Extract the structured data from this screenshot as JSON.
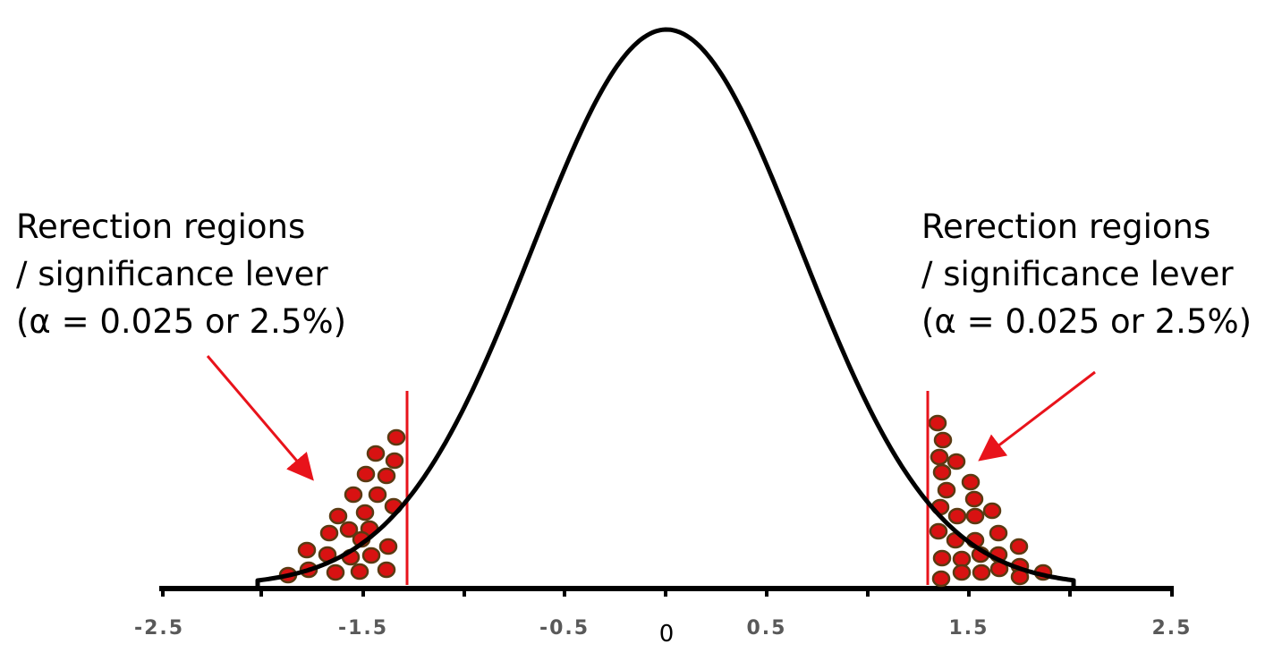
{
  "diagram": {
    "curve": "normal bell curve",
    "x_axis": {
      "tick_labels": [
        "-2.5",
        "-1.5",
        "-0.5",
        "0.5",
        "1.5",
        "2.5"
      ],
      "center_label": "0"
    },
    "left_annotation": {
      "lines": [
        "Rerection regions",
        "/ significance lever",
        "(α = 0.025 or 2.5%)"
      ]
    },
    "right_annotation": {
      "lines": [
        "Rerection regions",
        "/ significance lever",
        "(α = 0.025 or 2.5%)"
      ]
    },
    "colors": {
      "curve": "#000000",
      "cutoff_line": "#e8131b",
      "arrow": "#e8131b",
      "dot_fill": "#d81212",
      "dot_stroke": "#5a3a12",
      "tick_text": "#595959"
    }
  }
}
